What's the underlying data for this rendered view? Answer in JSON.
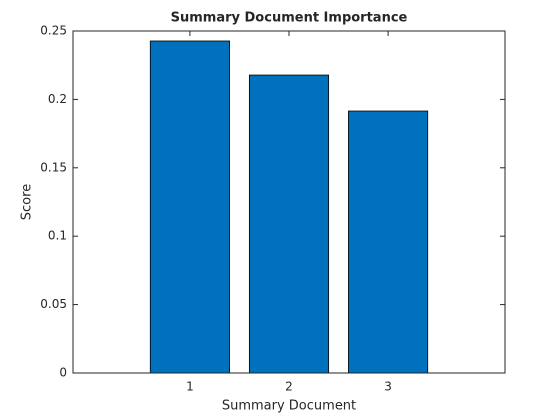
{
  "chart_data": {
    "type": "bar",
    "title": "Summary Document Importance",
    "xlabel": "Summary Document",
    "ylabel": "Score",
    "x": [
      1,
      2,
      3
    ],
    "values": [
      0.2427,
      0.2178,
      0.1915
    ],
    "color": "#0072bd",
    "xlim": [
      -0.18,
      4.18
    ],
    "xticks": [
      1,
      2,
      3
    ],
    "ylim": [
      0,
      0.25
    ],
    "yticks": [
      0,
      0.05,
      0.1,
      0.15,
      0.2,
      0.25
    ],
    "grid": false
  }
}
